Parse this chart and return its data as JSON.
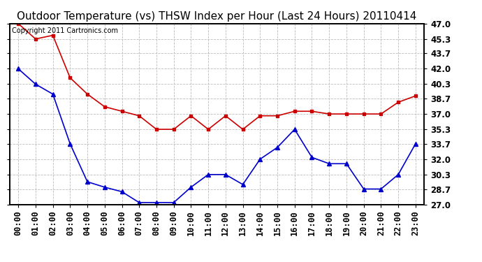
{
  "title": "Outdoor Temperature (vs) THSW Index per Hour (Last 24 Hours) 20110414",
  "copyright": "Copyright 2011 Cartronics.com",
  "x_labels": [
    "00:00",
    "01:00",
    "02:00",
    "03:00",
    "04:00",
    "05:00",
    "06:00",
    "07:00",
    "08:00",
    "09:00",
    "10:00",
    "11:00",
    "12:00",
    "13:00",
    "14:00",
    "15:00",
    "16:00",
    "17:00",
    "18:00",
    "19:00",
    "20:00",
    "21:00",
    "22:00",
    "23:00"
  ],
  "thsw_data": [
    47.0,
    45.3,
    45.7,
    41.0,
    39.2,
    37.8,
    37.3,
    36.8,
    35.3,
    35.3,
    36.8,
    35.3,
    36.8,
    35.3,
    36.8,
    36.8,
    37.3,
    37.3,
    37.0,
    37.0,
    37.0,
    37.0,
    38.3,
    39.0
  ],
  "temp_data": [
    42.0,
    40.3,
    39.2,
    33.7,
    29.5,
    28.9,
    28.4,
    27.2,
    27.2,
    27.2,
    28.9,
    30.3,
    30.3,
    29.2,
    32.0,
    33.3,
    35.3,
    32.2,
    31.5,
    31.5,
    28.7,
    28.7,
    30.3,
    33.7
  ],
  "thsw_color": "#cc0000",
  "temp_color": "#0000cc",
  "bg_color": "#ffffff",
  "plot_bg": "#ffffff",
  "grid_color": "#bbbbbb",
  "ylim_min": 27.0,
  "ylim_max": 47.0,
  "yticks": [
    27.0,
    28.7,
    30.3,
    32.0,
    33.7,
    35.3,
    37.0,
    38.7,
    40.3,
    42.0,
    43.7,
    45.3,
    47.0
  ],
  "title_fontsize": 11,
  "copyright_fontsize": 7,
  "tick_fontsize": 8.5
}
